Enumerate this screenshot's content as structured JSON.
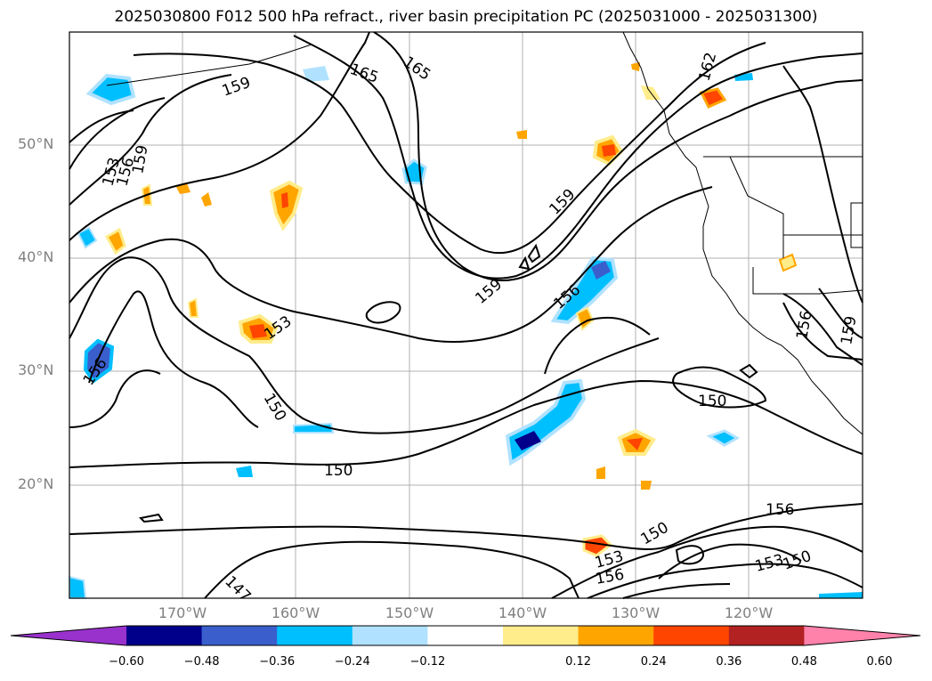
{
  "title": "2025030800 F012 500 hPa refract., river basin precipitation PC (2025031000 - 2025031300)",
  "lat_labels": [
    "50°N",
    "40°N",
    "30°N",
    "20°N"
  ],
  "lon_labels": [
    "170°W",
    "160°W",
    "150°W",
    "140°W",
    "130°W",
    "120°W"
  ],
  "colorbar": {
    "ticks": [
      "−0.60",
      "−0.48",
      "−0.36",
      "−0.24",
      "−0.12",
      "0.12",
      "0.24",
      "0.36",
      "0.48",
      "0.60"
    ],
    "colors": [
      "#9932cc",
      "#00008b",
      "#3a5fcd",
      "#00bfff",
      "#b0e2ff",
      "#ffffff",
      "#ffec8b",
      "#ffa500",
      "#ff4500",
      "#b22222",
      "#ff82ab"
    ]
  },
  "contour_labels": [
    "165",
    "165",
    "162",
    "159",
    "159",
    "153",
    "156",
    "159",
    "156",
    "153",
    "150",
    "159",
    "156",
    "156",
    "159",
    "150",
    "150",
    "156",
    "150",
    "153",
    "150",
    "153",
    "156",
    "147"
  ],
  "colors": {
    "land_line": "#000000",
    "grid": "#b0b0b0",
    "axis_text": "#808080"
  }
}
